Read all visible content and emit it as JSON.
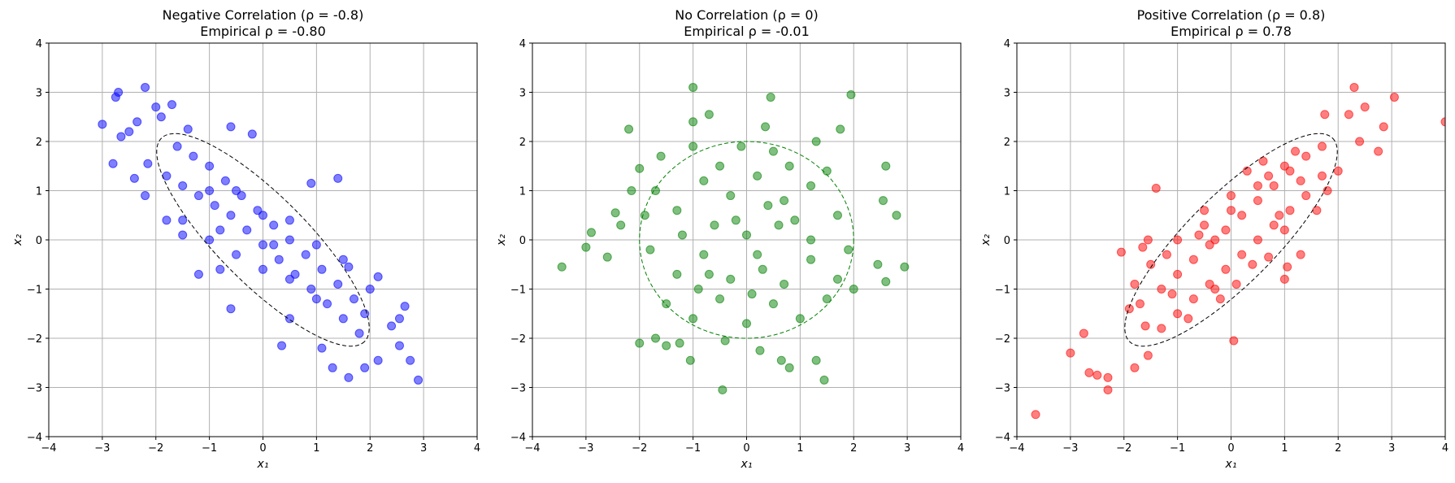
{
  "chart_data": [
    {
      "type": "scatter",
      "title": "Negative Correlation (ρ = -0.8)",
      "subtitle": "Empirical ρ = -0.80",
      "xlabel": "x₁",
      "ylabel": "x₂",
      "xlim": [
        -4,
        4
      ],
      "ylim": [
        -4,
        4
      ],
      "xticks": [
        "−4",
        "−3",
        "−2",
        "−1",
        "0",
        "1",
        "2",
        "3",
        "4"
      ],
      "yticks": [
        "−4",
        "−3",
        "−2",
        "−1",
        "0",
        "1",
        "2",
        "3",
        "4"
      ],
      "grid": true,
      "color": "#0000ff",
      "rho": -0.8,
      "ellipse": "dashed 2σ contour",
      "points": [
        [
          -2.2,
          3.1
        ],
        [
          -2.7,
          3.0
        ],
        [
          -2.75,
          2.9
        ],
        [
          -2.0,
          2.7
        ],
        [
          -1.7,
          2.75
        ],
        [
          -2.35,
          2.4
        ],
        [
          -1.9,
          2.5
        ],
        [
          -2.5,
          2.2
        ],
        [
          -2.65,
          2.1
        ],
        [
          -2.8,
          1.55
        ],
        [
          -3.0,
          2.35
        ],
        [
          -2.15,
          1.55
        ],
        [
          -1.4,
          2.25
        ],
        [
          -0.6,
          2.3
        ],
        [
          -0.2,
          2.15
        ],
        [
          -2.2,
          0.9
        ],
        [
          -1.8,
          0.4
        ],
        [
          -1.2,
          -0.7
        ],
        [
          -0.8,
          -0.6
        ],
        [
          -0.6,
          -1.4
        ],
        [
          0.9,
          1.15
        ],
        [
          1.4,
          1.25
        ],
        [
          0.5,
          -1.6
        ],
        [
          0.35,
          -2.15
        ],
        [
          1.1,
          -2.2
        ],
        [
          1.3,
          -2.6
        ],
        [
          1.6,
          -2.8
        ],
        [
          1.9,
          -2.6
        ],
        [
          2.15,
          -2.45
        ],
        [
          2.4,
          -1.75
        ],
        [
          2.55,
          -1.6
        ],
        [
          2.65,
          -1.35
        ],
        [
          2.75,
          -2.45
        ],
        [
          2.9,
          -2.85
        ],
        [
          2.55,
          -2.15
        ],
        [
          2.0,
          -1.0
        ],
        [
          2.15,
          -0.75
        ],
        [
          1.6,
          -0.55
        ],
        [
          -1.5,
          0.4
        ],
        [
          -2.4,
          1.25
        ],
        [
          -1.6,
          1.9
        ],
        [
          -1.3,
          1.7
        ],
        [
          -1.0,
          1.5
        ],
        [
          -0.7,
          1.2
        ],
        [
          -0.4,
          0.9
        ],
        [
          -0.1,
          0.6
        ],
        [
          0.2,
          0.3
        ],
        [
          0.5,
          0.0
        ],
        [
          0.8,
          -0.3
        ],
        [
          1.1,
          -0.6
        ],
        [
          1.4,
          -0.9
        ],
        [
          1.7,
          -1.2
        ],
        [
          1.9,
          -1.5
        ],
        [
          -1.8,
          1.3
        ],
        [
          -1.5,
          1.1
        ],
        [
          -1.2,
          0.9
        ],
        [
          -0.9,
          0.7
        ],
        [
          -0.6,
          0.5
        ],
        [
          -0.3,
          0.2
        ],
        [
          0.0,
          -0.1
        ],
        [
          0.3,
          -0.4
        ],
        [
          0.6,
          -0.7
        ],
        [
          0.9,
          -1.0
        ],
        [
          1.2,
          -1.3
        ],
        [
          1.5,
          -1.6
        ],
        [
          1.8,
          -1.9
        ],
        [
          -1.0,
          1.0
        ],
        [
          -0.5,
          1.0
        ],
        [
          0.0,
          0.5
        ],
        [
          0.5,
          0.4
        ],
        [
          1.0,
          -0.1
        ],
        [
          1.5,
          -0.4
        ],
        [
          -1.5,
          0.1
        ],
        [
          -1.0,
          0.0
        ],
        [
          -0.5,
          -0.3
        ],
        [
          0.0,
          -0.6
        ],
        [
          0.5,
          -0.8
        ],
        [
          1.0,
          -1.2
        ],
        [
          -0.8,
          0.2
        ],
        [
          0.2,
          -0.1
        ]
      ]
    },
    {
      "type": "scatter",
      "title": "No Correlation (ρ = 0)",
      "subtitle": "Empirical ρ = -0.01",
      "xlabel": "x₁",
      "ylabel": "x₂",
      "xlim": [
        -4,
        4
      ],
      "ylim": [
        -4,
        4
      ],
      "xticks": [
        "−4",
        "−3",
        "−2",
        "−1",
        "0",
        "1",
        "2",
        "3",
        "4"
      ],
      "yticks": [
        "−4",
        "−3",
        "−2",
        "−1",
        "0",
        "1",
        "2",
        "3",
        "4"
      ],
      "grid": true,
      "color": "#008000",
      "rho": 0,
      "ellipse": "dashed 2σ contour",
      "points": [
        [
          -1.0,
          3.1
        ],
        [
          0.45,
          2.9
        ],
        [
          1.95,
          2.95
        ],
        [
          -0.7,
          2.55
        ],
        [
          -1.0,
          2.4
        ],
        [
          -2.2,
          2.25
        ],
        [
          0.35,
          2.3
        ],
        [
          1.75,
          2.25
        ],
        [
          -3.45,
          -0.55
        ],
        [
          -3.0,
          -0.15
        ],
        [
          -2.9,
          0.15
        ],
        [
          -2.6,
          -0.35
        ],
        [
          -2.35,
          0.3
        ],
        [
          -2.45,
          0.55
        ],
        [
          -2.0,
          1.45
        ],
        [
          -2.15,
          1.0
        ],
        [
          2.6,
          1.5
        ],
        [
          2.55,
          0.8
        ],
        [
          2.8,
          0.5
        ],
        [
          2.95,
          -0.55
        ],
        [
          2.45,
          -0.5
        ],
        [
          2.6,
          -0.85
        ],
        [
          2.0,
          -1.0
        ],
        [
          -2.0,
          -2.1
        ],
        [
          -1.7,
          -2.0
        ],
        [
          -1.5,
          -2.15
        ],
        [
          -1.25,
          -2.1
        ],
        [
          -1.05,
          -2.45
        ],
        [
          -0.45,
          -3.05
        ],
        [
          0.8,
          -2.6
        ],
        [
          1.45,
          -2.85
        ],
        [
          0.65,
          -2.45
        ],
        [
          1.3,
          -2.45
        ],
        [
          0.25,
          -2.25
        ],
        [
          -0.4,
          -2.05
        ],
        [
          -1.6,
          1.7
        ],
        [
          -1.0,
          1.9
        ],
        [
          0.5,
          1.8
        ],
        [
          1.3,
          2.0
        ],
        [
          -1.3,
          0.6
        ],
        [
          -0.8,
          1.2
        ],
        [
          -0.3,
          0.9
        ],
        [
          0.2,
          1.3
        ],
        [
          0.7,
          0.8
        ],
        [
          1.2,
          1.1
        ],
        [
          1.7,
          0.5
        ],
        [
          -1.8,
          -0.2
        ],
        [
          -1.3,
          -0.7
        ],
        [
          -0.8,
          -0.3
        ],
        [
          -0.3,
          -0.8
        ],
        [
          0.2,
          -0.3
        ],
        [
          0.7,
          -0.9
        ],
        [
          1.2,
          -0.4
        ],
        [
          1.7,
          -0.8
        ],
        [
          -1.5,
          -1.3
        ],
        [
          -1.0,
          -1.6
        ],
        [
          -0.5,
          -1.2
        ],
        [
          0.0,
          -1.7
        ],
        [
          0.5,
          -1.3
        ],
        [
          1.0,
          -1.6
        ],
        [
          1.5,
          -1.2
        ],
        [
          -1.2,
          0.1
        ],
        [
          -0.6,
          0.3
        ],
        [
          0.0,
          0.1
        ],
        [
          0.6,
          0.3
        ],
        [
          1.2,
          0.0
        ],
        [
          -0.9,
          -1.0
        ],
        [
          -0.2,
          0.4
        ],
        [
          0.3,
          -0.6
        ],
        [
          0.9,
          0.4
        ],
        [
          1.5,
          1.4
        ],
        [
          -1.7,
          1.0
        ],
        [
          -0.5,
          1.5
        ],
        [
          0.1,
          -1.1
        ],
        [
          0.8,
          1.5
        ],
        [
          1.9,
          -0.2
        ],
        [
          -1.9,
          0.5
        ],
        [
          -0.1,
          1.9
        ],
        [
          0.4,
          0.7
        ],
        [
          -0.7,
          -0.7
        ]
      ]
    },
    {
      "type": "scatter",
      "title": "Positive Correlation (ρ = 0.8)",
      "subtitle": "Empirical ρ = 0.78",
      "xlabel": "x₁",
      "ylabel": "x₂",
      "xlim": [
        -4,
        4
      ],
      "ylim": [
        -4,
        4
      ],
      "xticks": [
        "−4",
        "−3",
        "−2",
        "−1",
        "0",
        "1",
        "2",
        "3",
        "4"
      ],
      "yticks": [
        "−4",
        "−3",
        "−2",
        "−1",
        "0",
        "1",
        "2",
        "3",
        "4"
      ],
      "grid": true,
      "color": "#ff0000",
      "rho": 0.8,
      "ellipse": "dashed 2σ contour",
      "points": [
        [
          -3.65,
          -3.55
        ],
        [
          -2.65,
          -2.7
        ],
        [
          -2.5,
          -2.75
        ],
        [
          -2.3,
          -2.8
        ],
        [
          -2.3,
          -3.05
        ],
        [
          -3.0,
          -2.3
        ],
        [
          -2.75,
          -1.9
        ],
        [
          -1.8,
          -2.6
        ],
        [
          -1.55,
          -2.35
        ],
        [
          -1.6,
          -1.75
        ],
        [
          -2.05,
          -0.25
        ],
        [
          -1.65,
          -0.15
        ],
        [
          -1.55,
          0.0
        ],
        [
          3.05,
          2.9
        ],
        [
          2.3,
          3.1
        ],
        [
          2.5,
          2.7
        ],
        [
          2.2,
          2.55
        ],
        [
          1.75,
          2.55
        ],
        [
          2.85,
          2.3
        ],
        [
          2.75,
          1.8
        ],
        [
          2.4,
          2.0
        ],
        [
          2.0,
          1.4
        ],
        [
          1.8,
          1.0
        ],
        [
          1.05,
          -0.55
        ],
        [
          1.3,
          -0.3
        ],
        [
          1.0,
          -0.8
        ],
        [
          0.05,
          -2.05
        ],
        [
          -0.3,
          -1.0
        ],
        [
          0.7,
          -0.35
        ],
        [
          4.0,
          2.4
        ],
        [
          -1.4,
          1.05
        ],
        [
          -1.7,
          -1.3
        ],
        [
          -1.3,
          -1.0
        ],
        [
          -1.0,
          -0.7
        ],
        [
          -0.7,
          -0.4
        ],
        [
          -0.4,
          -0.1
        ],
        [
          -0.1,
          0.2
        ],
        [
          0.2,
          0.5
        ],
        [
          0.5,
          0.8
        ],
        [
          0.8,
          1.1
        ],
        [
          1.1,
          1.4
        ],
        [
          1.4,
          1.7
        ],
        [
          1.7,
          1.9
        ],
        [
          -1.3,
          -1.8
        ],
        [
          -1.0,
          -1.5
        ],
        [
          -0.7,
          -1.2
        ],
        [
          -0.4,
          -0.9
        ],
        [
          -0.1,
          -0.6
        ],
        [
          0.2,
          -0.3
        ],
        [
          0.5,
          0.0
        ],
        [
          0.8,
          0.3
        ],
        [
          1.1,
          0.6
        ],
        [
          1.4,
          0.9
        ],
        [
          1.7,
          1.3
        ],
        [
          -1.5,
          -0.5
        ],
        [
          -1.0,
          0.0
        ],
        [
          -0.5,
          0.3
        ],
        [
          0.0,
          0.6
        ],
        [
          0.5,
          1.1
        ],
        [
          1.0,
          1.5
        ],
        [
          -1.8,
          -0.9
        ],
        [
          -1.2,
          -0.3
        ],
        [
          -0.6,
          0.1
        ],
        [
          0.0,
          0.9
        ],
        [
          0.6,
          1.6
        ],
        [
          1.2,
          1.8
        ],
        [
          -0.8,
          -1.6
        ],
        [
          -0.2,
          -1.2
        ],
        [
          0.4,
          -0.5
        ],
        [
          1.0,
          0.2
        ],
        [
          1.6,
          0.6
        ],
        [
          -1.9,
          -1.4
        ],
        [
          -0.5,
          0.6
        ],
        [
          0.3,
          1.4
        ],
        [
          0.9,
          0.5
        ],
        [
          -1.1,
          -1.1
        ],
        [
          -0.3,
          0.0
        ],
        [
          0.7,
          1.3
        ],
        [
          1.3,
          1.2
        ],
        [
          0.1,
          -0.9
        ]
      ]
    }
  ]
}
